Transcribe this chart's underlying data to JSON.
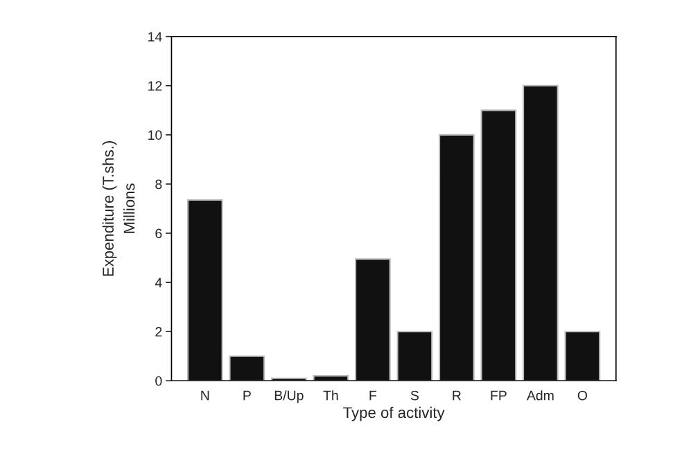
{
  "chart_data": {
    "type": "bar",
    "categories": [
      "N",
      "P",
      "B/Up",
      "Th",
      "F",
      "S",
      "R",
      "FP",
      "Adm",
      "O"
    ],
    "values": [
      7.35,
      1.0,
      0.1,
      0.2,
      4.95,
      2.0,
      10.0,
      11.0,
      12.0,
      2.0
    ],
    "color": "#111111",
    "xlabel": "Type of activity",
    "ylabel": "Expenditure (T.shs.)\nMillions",
    "ylim": [
      0,
      14
    ],
    "yticks": [
      0,
      2,
      4,
      6,
      8,
      10,
      12,
      14
    ],
    "grid": false
  }
}
